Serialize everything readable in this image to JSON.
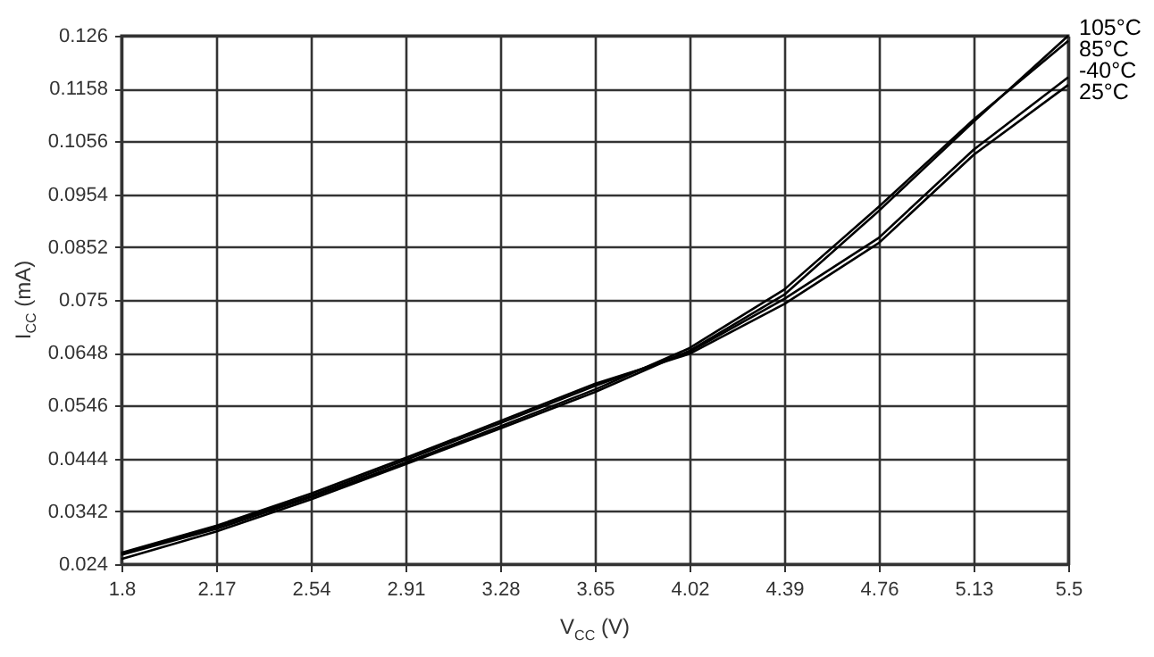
{
  "chart_data": {
    "type": "line",
    "xlabel": "V$_{CC}$ (V)",
    "ylabel": "I$_{CC}$ (mA)",
    "x": [
      1.8,
      2.17,
      2.54,
      2.91,
      3.28,
      3.65,
      4.02,
      4.39,
      4.76,
      5.13,
      5.5
    ],
    "series": [
      {
        "name": "105°C",
        "color": "#000000",
        "values": [
          0.025,
          0.0303,
          0.0365,
          0.0433,
          0.0502,
          0.0572,
          0.0652,
          0.076,
          0.0922,
          0.1094,
          0.126
        ]
      },
      {
        "name": "85°C",
        "color": "#000000",
        "values": [
          0.0258,
          0.0308,
          0.0369,
          0.0436,
          0.0506,
          0.0577,
          0.0657,
          0.077,
          0.093,
          0.1098,
          0.125
        ]
      },
      {
        "name": "-40°C",
        "color": "#000000",
        "values": [
          0.026,
          0.0312,
          0.0372,
          0.0441,
          0.0512,
          0.0584,
          0.065,
          0.0752,
          0.087,
          0.104,
          0.118
        ]
      },
      {
        "name": "25°C",
        "color": "#000000",
        "values": [
          0.0262,
          0.0314,
          0.0376,
          0.0445,
          0.0516,
          0.0588,
          0.0646,
          0.0742,
          0.086,
          0.103,
          0.1165
        ]
      }
    ],
    "xlim": [
      1.8,
      5.5
    ],
    "xticks": [
      1.8,
      2.17,
      2.54,
      2.91,
      3.28,
      3.65,
      4.02,
      4.39,
      4.76,
      5.13,
      5.5
    ],
    "ylim": [
      0.024,
      0.126
    ],
    "yticks": [
      0.024,
      0.0342,
      0.0444,
      0.0546,
      0.0648,
      0.075,
      0.0852,
      0.0954,
      0.1056,
      0.1158,
      0.126
    ],
    "grid": true,
    "legend": false,
    "marker": "none",
    "line_style": "solid"
  }
}
